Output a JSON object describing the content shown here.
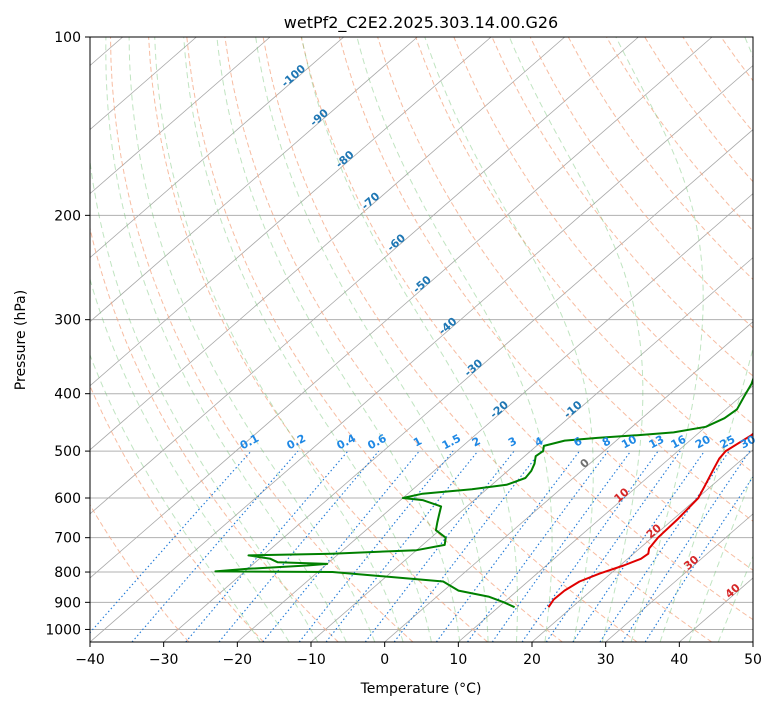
{
  "chart_data": {
    "type": "line",
    "title": "wetPf2_C2E2.2025.303.14.00.G26",
    "xlabel": "Temperature (°C)",
    "ylabel": "Pressure (hPa)",
    "xlim": [
      -40,
      50
    ],
    "ylim": [
      1050,
      100
    ],
    "x_ticks": [
      -40,
      -30,
      -20,
      -10,
      0,
      10,
      20,
      30,
      40,
      50
    ],
    "y_ticks": [
      100,
      200,
      300,
      400,
      500,
      600,
      700,
      800,
      900,
      1000
    ],
    "series": [
      {
        "name": "Temperature",
        "color": "#e00000",
        "points": [
          [
            917,
            16.8
          ],
          [
            890,
            16.3
          ],
          [
            860,
            16.4
          ],
          [
            830,
            17.0
          ],
          [
            805,
            18.5
          ],
          [
            780,
            20.5
          ],
          [
            760,
            21.8
          ],
          [
            745,
            22.0
          ],
          [
            730,
            21.3
          ],
          [
            700,
            20.8
          ],
          [
            650,
            20.6
          ],
          [
            600,
            20.1
          ],
          [
            570,
            19.0
          ],
          [
            540,
            17.8
          ],
          [
            515,
            16.8
          ],
          [
            500,
            16.5
          ],
          [
            470,
            17.5
          ],
          [
            450,
            17.5
          ],
          [
            430,
            16.0
          ],
          [
            400,
            13.5
          ],
          [
            370,
            11.5
          ],
          [
            340,
            9.5
          ],
          [
            310,
            7.0
          ],
          [
            280,
            4.5
          ],
          [
            260,
            2.8
          ],
          [
            240,
            1.2
          ],
          [
            220,
            -0.5
          ],
          [
            200,
            -2.0
          ],
          [
            190,
            -2.0
          ],
          [
            175,
            -1.5
          ],
          [
            160,
            0.2
          ],
          [
            150,
            2.0
          ],
          [
            140,
            3.5
          ],
          [
            130,
            4.0
          ],
          [
            120,
            4.8
          ],
          [
            110,
            7.0
          ],
          [
            100,
            9.0
          ]
        ]
      },
      {
        "name": "Dewpoint",
        "color": "#008000",
        "points": [
          [
            917,
            12.2
          ],
          [
            900,
            10.0
          ],
          [
            880,
            7.0
          ],
          [
            860,
            2.0
          ],
          [
            830,
            -1.5
          ],
          [
            800,
            -18.0
          ],
          [
            798,
            -34.0
          ],
          [
            790,
            -30.0
          ],
          [
            780,
            -22.5
          ],
          [
            775,
            -20.0
          ],
          [
            770,
            -27.0
          ],
          [
            760,
            -28.5
          ],
          [
            750,
            -32.0
          ],
          [
            745,
            -21.0
          ],
          [
            735,
            -10.0
          ],
          [
            720,
            -7.0
          ],
          [
            700,
            -8.0
          ],
          [
            680,
            -10.5
          ],
          [
            660,
            -11.5
          ],
          [
            640,
            -12.5
          ],
          [
            620,
            -13.5
          ],
          [
            605,
            -17.0
          ],
          [
            600,
            -20.0
          ],
          [
            590,
            -18.0
          ],
          [
            580,
            -12.0
          ],
          [
            570,
            -8.0
          ],
          [
            555,
            -6.5
          ],
          [
            540,
            -6.8
          ],
          [
            525,
            -7.5
          ],
          [
            510,
            -8.5
          ],
          [
            500,
            -8.3
          ],
          [
            490,
            -9.0
          ],
          [
            480,
            -7.0
          ],
          [
            475,
            -3.0
          ],
          [
            470,
            2.0
          ],
          [
            465,
            6.5
          ],
          [
            455,
            10.0
          ],
          [
            440,
            11.2
          ],
          [
            425,
            11.5
          ],
          [
            405,
            10.5
          ],
          [
            385,
            9.5
          ],
          [
            365,
            8.0
          ],
          [
            345,
            6.5
          ],
          [
            330,
            4.5
          ],
          [
            315,
            2.5
          ],
          [
            300,
            1.0
          ],
          [
            285,
            0.5
          ],
          [
            270,
            0.0
          ],
          [
            260,
            -1.5
          ],
          [
            250,
            -3.5
          ],
          [
            240,
            -5.5
          ],
          [
            232,
            -4.0
          ],
          [
            220,
            -3.5
          ],
          [
            205,
            -3.0
          ],
          [
            190,
            -2.5
          ],
          [
            175,
            -4.5
          ],
          [
            160,
            -6.0
          ],
          [
            150,
            -5.5
          ],
          [
            140,
            -5.0
          ],
          [
            125,
            -2.5
          ],
          [
            110,
            0.0
          ],
          [
            100,
            2.0
          ]
        ]
      }
    ],
    "isotherm_labels": [
      "-100",
      "-90",
      "-80",
      "-70",
      "-60",
      "-50",
      "-40",
      "-30",
      "-20",
      "-10",
      "0",
      "10",
      "20",
      "30",
      "40"
    ],
    "mixing_ratio_labels": [
      "0.1",
      "0.2",
      "0.4",
      "0.6",
      "1",
      "1.5",
      "2",
      "3",
      "4",
      "6",
      "8",
      "10",
      "13",
      "16",
      "20",
      "25",
      "30",
      "36"
    ]
  }
}
